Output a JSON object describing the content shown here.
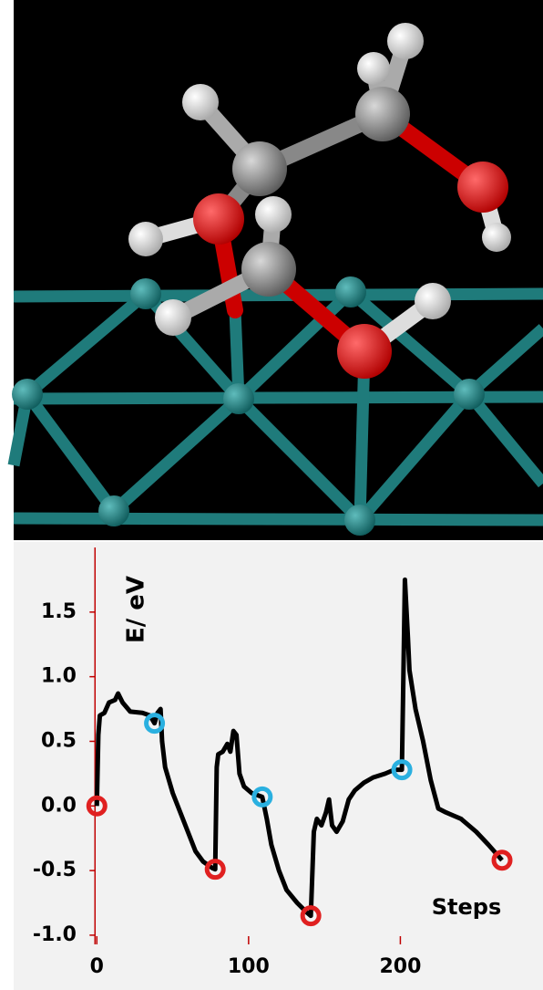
{
  "chart_data": {
    "type": "line",
    "x_label": "Steps",
    "y_label": "E/ eV",
    "xlim": [
      -53,
      294
    ],
    "ylim": [
      -1.05,
      2.0
    ],
    "xticks": [
      0,
      100,
      200
    ],
    "yticks": [
      {
        "value": -1,
        "label": "-1.0"
      },
      -0.5,
      {
        "value": 0,
        "label": "0.0"
      },
      0.5,
      {
        "value": 1,
        "label": "1.0"
      },
      1.5
    ],
    "axis_color": "#c00000",
    "series": [
      {
        "style": "line",
        "color": "#000000",
        "x": [
          0,
          1,
          2,
          5,
          8,
          12,
          14,
          17,
          22,
          30,
          35,
          38,
          40,
          42,
          43,
          45,
          50,
          55,
          60,
          65,
          70,
          76,
          78,
          79,
          80,
          83,
          86,
          88,
          90,
          92,
          94,
          97,
          102,
          109,
          112,
          115,
          120,
          125,
          132,
          138,
          141,
          143,
          145,
          148,
          151,
          153,
          155,
          158,
          162,
          166,
          170,
          176,
          182,
          190,
          196,
          201,
          202,
          203,
          205,
          206,
          210,
          215,
          220,
          225,
          230,
          240,
          250,
          258,
          267
        ],
        "values": [
          0,
          0.55,
          0.7,
          0.72,
          0.8,
          0.82,
          0.87,
          0.8,
          0.73,
          0.72,
          0.7,
          0.64,
          0.72,
          0.75,
          0.5,
          0.3,
          0.1,
          -0.05,
          -0.2,
          -0.35,
          -0.43,
          -0.48,
          -0.49,
          0.3,
          0.4,
          0.42,
          0.48,
          0.42,
          0.58,
          0.55,
          0.25,
          0.15,
          0.1,
          0.07,
          -0.1,
          -0.3,
          -0.5,
          -0.65,
          -0.75,
          -0.82,
          -0.85,
          -0.2,
          -0.1,
          -0.15,
          -0.05,
          0.05,
          -0.15,
          -0.2,
          -0.12,
          0.05,
          0.12,
          0.18,
          0.22,
          0.25,
          0.28,
          0.28,
          1.0,
          1.75,
          1.3,
          1.05,
          0.75,
          0.5,
          0.2,
          -0.02,
          -0.05,
          -0.1,
          -0.2,
          -0.3,
          -0.42
        ]
      },
      {
        "style": "ring",
        "color": "#e02020",
        "x": [
          0,
          78,
          141,
          267
        ],
        "values": [
          0,
          -0.49,
          -0.85,
          -0.42
        ]
      },
      {
        "style": "ring",
        "color": "#2ab0e0",
        "x": [
          38,
          109,
          201
        ],
        "values": [
          0.64,
          0.07,
          0.28
        ]
      }
    ]
  }
}
